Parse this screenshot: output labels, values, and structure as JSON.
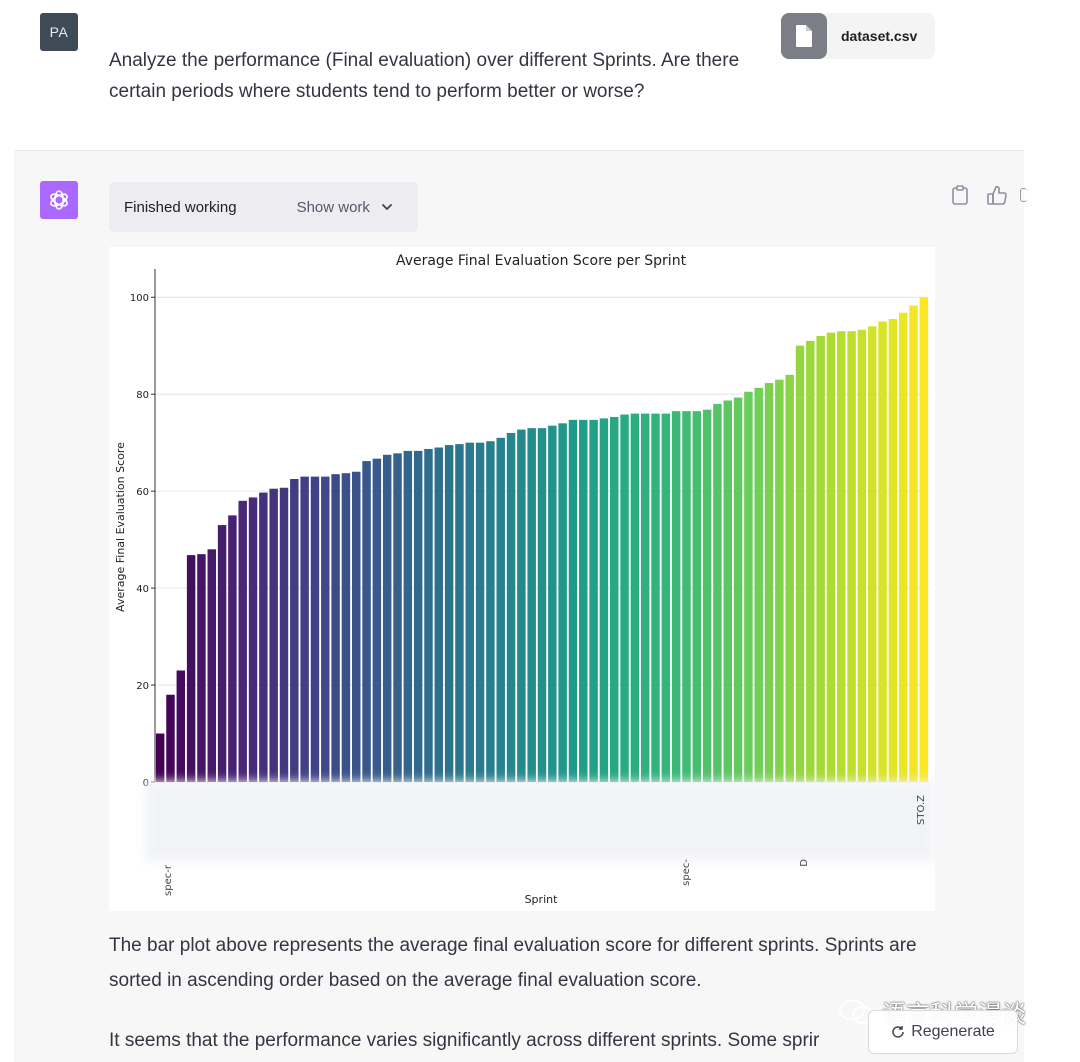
{
  "user_message": {
    "avatar_initials": "PA",
    "attachment": {
      "file_name": "dataset.csv",
      "icon": "document-icon"
    },
    "text": "Analyze the performance (Final evaluation) over different Sprints. Are there certain periods where students tend to perform better or worse?"
  },
  "assistant_message": {
    "avatar_icon": "openai-logo-icon",
    "work_status": "Finished working",
    "show_work_label": "Show work",
    "actions": [
      "clipboard-icon",
      "thumbs-up-icon"
    ],
    "paragraph1": "The bar plot above represents the average final evaluation score for different sprints. Sprints are sorted in ascending order based on the average final evaluation score.",
    "paragraph2": "It seems that the performance varies significantly across different sprints. Some sprir"
  },
  "regenerate_label": "Regenerate",
  "watermark_text": "语言科学漫谈",
  "colors": {
    "gpt_avatar": "#ab68ff",
    "user_avatar": "#3f4a57",
    "colormap": "viridis"
  },
  "chart_data": {
    "type": "bar",
    "title": "Average Final Evaluation Score per Sprint",
    "xlabel": "Sprint",
    "ylabel": "Average Final Evaluation Score",
    "ylim": [
      0,
      105
    ],
    "yticks": [
      0,
      20,
      40,
      60,
      80,
      100
    ],
    "visible_xtick_fragments": [
      "spec-r",
      "spec-",
      "D",
      "STO.Z"
    ],
    "sort": "ascending",
    "values": [
      10,
      18,
      23,
      46.8,
      47,
      48,
      53,
      55,
      58,
      58.7,
      59.7,
      60.5,
      60.7,
      62.5,
      63,
      63,
      63,
      63.5,
      63.7,
      64,
      66.2,
      66.7,
      67.5,
      67.8,
      68.3,
      68.3,
      68.7,
      69,
      69.5,
      69.7,
      70,
      70,
      70.3,
      71,
      72,
      72.7,
      73,
      73,
      73.5,
      74,
      74.7,
      74.7,
      74.7,
      75,
      75.3,
      75.8,
      76,
      76,
      76,
      76,
      76.5,
      76.5,
      76.5,
      76.8,
      78,
      78.7,
      79.3,
      80.5,
      81.3,
      82.3,
      83,
      84,
      90,
      91,
      92,
      92.7,
      93,
      93,
      93.3,
      94,
      95,
      95.5,
      96.8,
      98.3,
      100
    ]
  }
}
